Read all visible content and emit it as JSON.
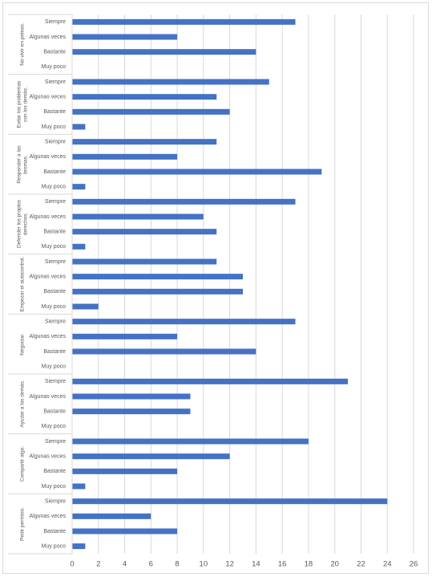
{
  "chart_data": {
    "type": "grouped-hbar",
    "color": "#4472c4",
    "grid": true,
    "xlim": [
      0,
      26
    ],
    "xticks": [
      0,
      2,
      4,
      6,
      8,
      10,
      12,
      14,
      16,
      18,
      20,
      22,
      24,
      26
    ],
    "groups": [
      {
        "name": "No vivir en peleas.",
        "categories": [
          "Siempre",
          "Algunas veces",
          "Bastante",
          "Muy poco"
        ],
        "values": [
          17,
          8,
          14,
          0
        ]
      },
      {
        "name": "Evitar los problemas con los demás.",
        "categories": [
          "Siempre",
          "Algunas veces",
          "Bastante",
          "Muy poco"
        ],
        "values": [
          15,
          11,
          12,
          1
        ]
      },
      {
        "name": "Responder a las bromas.",
        "categories": [
          "Siempre",
          "Algunas veces",
          "Bastante",
          "Muy poco"
        ],
        "values": [
          11,
          8,
          19,
          1
        ]
      },
      {
        "name": "Defender los propios derechos.",
        "categories": [
          "Siempre",
          "Algunas veces",
          "Bastante",
          "Muy poco"
        ],
        "values": [
          17,
          10,
          11,
          1
        ]
      },
      {
        "name": "Empezar el autocontrol.",
        "categories": [
          "Siempre",
          "Algunas veces",
          "Bastante",
          "Muy poco"
        ],
        "values": [
          11,
          13,
          13,
          2
        ]
      },
      {
        "name": "Negociar.",
        "categories": [
          "Siempre",
          "Algunas veces",
          "Bastante",
          "Muy poco"
        ],
        "values": [
          17,
          8,
          14,
          0
        ]
      },
      {
        "name": "Ayudar a los demás.",
        "categories": [
          "Siempre",
          "Algunas veces",
          "Bastante",
          "Muy poco"
        ],
        "values": [
          21,
          9,
          9,
          0
        ]
      },
      {
        "name": "Compartir algo.",
        "categories": [
          "Siempre",
          "Algunas veces",
          "Bastante",
          "Muy poco"
        ],
        "values": [
          18,
          12,
          8,
          1
        ]
      },
      {
        "name": "Pedir permiso.",
        "categories": [
          "Siempre",
          "Algunas veces",
          "Bastante",
          "Muy poco"
        ],
        "values": [
          24,
          6,
          8,
          1
        ]
      }
    ]
  }
}
